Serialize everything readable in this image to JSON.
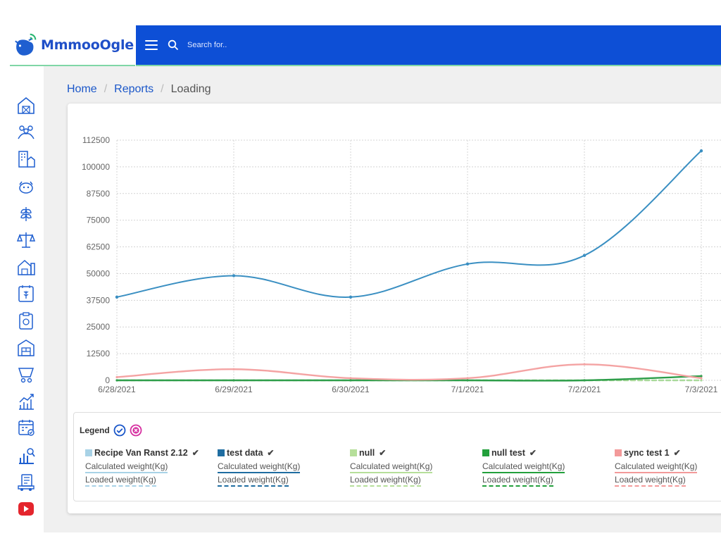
{
  "app": {
    "name": "MmmooOgle"
  },
  "topbar": {
    "search_placeholder": "Search for.."
  },
  "breadcrumb": {
    "home": "Home",
    "reports": "Reports",
    "current": "Loading"
  },
  "sidebar": {
    "items": [
      {
        "icon": "barn-icon"
      },
      {
        "icon": "people-icon"
      },
      {
        "icon": "building-icon"
      },
      {
        "icon": "cows-icon"
      },
      {
        "icon": "grain-icon"
      },
      {
        "icon": "scale-icon"
      },
      {
        "icon": "farm-icon"
      },
      {
        "icon": "calendar-grain-icon"
      },
      {
        "icon": "clipboard-icon"
      },
      {
        "icon": "warehouse-icon"
      },
      {
        "icon": "feeder-icon"
      },
      {
        "icon": "growth-chart-icon"
      },
      {
        "icon": "schedule-icon"
      },
      {
        "icon": "analytics-icon"
      },
      {
        "icon": "truck-icon"
      },
      {
        "icon": "youtube-icon"
      }
    ]
  },
  "chart_data": {
    "type": "line",
    "categories": [
      "6/28/2021",
      "6/29/2021",
      "6/30/2021",
      "7/1/2021",
      "7/2/2021",
      "7/3/2021"
    ],
    "y_ticks": [
      "0",
      "12500",
      "25000",
      "37500",
      "50000",
      "62500",
      "75000",
      "87500",
      "100000",
      "112500"
    ],
    "ylim": [
      0,
      112500
    ],
    "grid": true,
    "series": [
      {
        "name": "test data",
        "line": "Calculated weight(Kg)",
        "color": "#3a8fc2",
        "values": [
          39000,
          49000,
          39000,
          54500,
          58500,
          107500
        ]
      },
      {
        "name": "sync test 1",
        "line": "Calculated weight(Kg)",
        "color": "#f4a3a3",
        "values": [
          1500,
          5200,
          1000,
          1000,
          7500,
          1000
        ]
      },
      {
        "name": "null test",
        "line": "Calculated weight(Kg)",
        "color": "#2e9e4a",
        "values": [
          0,
          0,
          0,
          0,
          0,
          2000
        ]
      },
      {
        "name": "null",
        "line": "Calculated weight(Kg)",
        "color": "#a9d99a",
        "values": [
          0,
          0,
          0,
          0,
          0,
          0
        ]
      }
    ]
  },
  "legend": {
    "title": "Legend",
    "items": [
      {
        "name": "Recipe Van Ranst 2.12",
        "color": "#a8d2e6",
        "calc": "Calculated weight(Kg)",
        "load": "Loaded weight(Kg)"
      },
      {
        "name": "test data",
        "color": "#1f6da1",
        "calc": "Calculated weight(Kg)",
        "load": "Loaded weight(Kg)"
      },
      {
        "name": "null",
        "color": "#b6df9a",
        "calc": "Calculated weight(Kg)",
        "load": "Loaded weight(Kg)"
      },
      {
        "name": "null test",
        "color": "#23a03c",
        "calc": "Calculated weight(Kg)",
        "load": "Loaded weight(Kg)"
      },
      {
        "name": "sync test 1",
        "color": "#f39a9a",
        "calc": "Calculated weight(Kg)",
        "load": "Loaded weight(Kg)"
      }
    ]
  }
}
